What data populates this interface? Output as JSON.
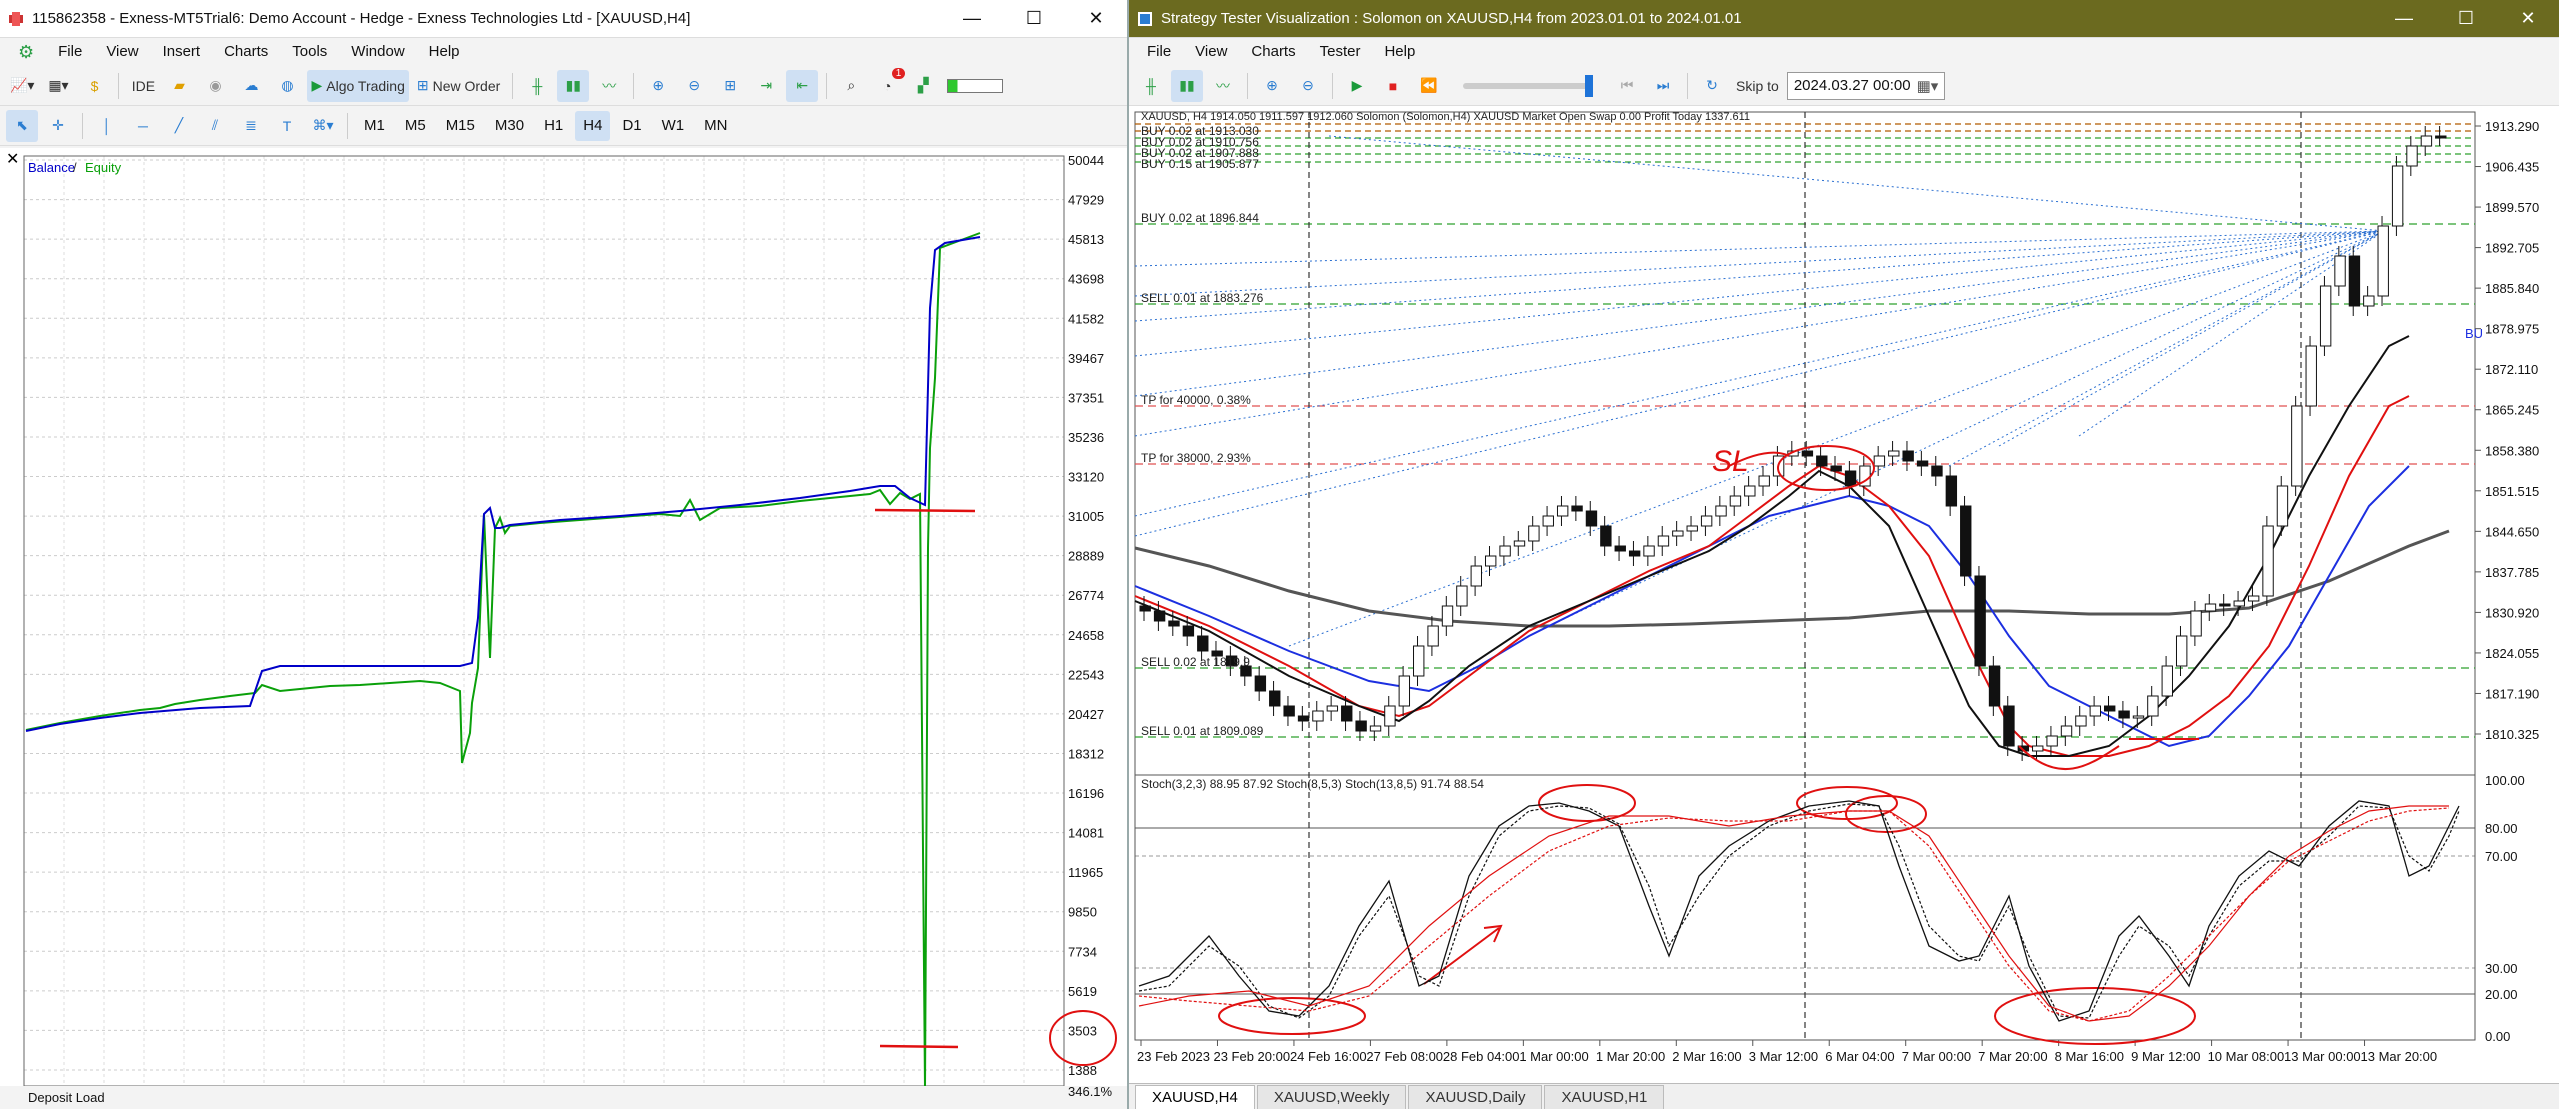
{
  "left": {
    "title": "115862358 - Exness-MT5Trial6: Demo Account - Hedge - Exness Technologies Ltd - [XAUUSD,H4]",
    "menu": [
      "File",
      "View",
      "Insert",
      "Charts",
      "Tools",
      "Window",
      "Help"
    ],
    "toolbar": {
      "ide": "IDE",
      "algo_trading": "Algo Trading",
      "new_order": "New Order",
      "badge": "1",
      "timeframes": [
        "M1",
        "M5",
        "M15",
        "M30",
        "H1",
        "H4",
        "D1",
        "W1",
        "MN"
      ],
      "active_timeframe": "H4"
    },
    "chart": {
      "legend_balance": "Balance",
      "legend_sep": " / ",
      "legend_equity": "Equity",
      "balance_color": "#0000c8",
      "equity_color": "#0aa00a",
      "y_ticks": [
        "50044",
        "47929",
        "45813",
        "43698",
        "41582",
        "39467",
        "37351",
        "35236",
        "33120",
        "31005",
        "28889",
        "26774",
        "24658",
        "22543",
        "20427",
        "18312",
        "16196",
        "14081",
        "11965",
        "9850",
        "7734",
        "5619",
        "3503",
        "1388"
      ],
      "footer_left": "Deposit Load",
      "footer_right": "346.1%"
    }
  },
  "right": {
    "title": "Strategy Tester Visualization : Solomon on XAUUSD,H4 from 2023.01.01 to 2024.01.01",
    "menu": [
      "File",
      "View",
      "Charts",
      "Tester",
      "Help"
    ],
    "skip_label": "Skip to",
    "skip_value": "2024.03.27 00:00",
    "chart": {
      "price_ticks": [
        "1913.290",
        "1906.435",
        "1899.570",
        "1892.705",
        "1885.840",
        "1878.975",
        "1872.110",
        "1865.245",
        "1858.380",
        "1851.515",
        "1844.650",
        "1837.785",
        "1830.920",
        "1824.055",
        "1817.190",
        "1810.325"
      ],
      "info_line": "XAUUSD, H4  1914.050 1911.597 1912.060  Solomon (Solomon,H4) XAUUSD  Market Open  Swap 0.00  Profit Today 1337.611",
      "order_labels": [
        "BUY 0.02 at 1913.030",
        "BUY 0.02 at 1910.756",
        "BUY 0.02 at 1907.888",
        "BUY 0.15 at 1905.877",
        "BUY 0.02 at 1896.844",
        "SELL 0.01 at 1883.276",
        "TP for 40000, 0.38%",
        "TP for 38000, 2.93%",
        "SELL 0.02 at 1819.9",
        "SELL 0.01 at 1809.089"
      ],
      "side_label": "BU",
      "annotation_sl": "SL",
      "stoch_label": "Stoch(3,2,3) 88.95 87.92 Stoch(8,5,3) Stoch(13,8,5) 91.74 88.54",
      "stoch_ticks": [
        "100.00",
        "80.00",
        "70.00",
        "30.00",
        "20.00",
        "0.00"
      ],
      "x_ticks": [
        "23 Feb 2023",
        "23 Feb 20:00",
        "24 Feb 16:00",
        "27 Feb 08:00",
        "28 Feb 04:00",
        "1 Mar 00:00",
        "1 Mar 20:00",
        "2 Mar 16:00",
        "3 Mar 12:00",
        "6 Mar 04:00",
        "7 Mar 00:00",
        "7 Mar 20:00",
        "8 Mar 16:00",
        "9 Mar 12:00",
        "10 Mar 08:00",
        "13 Mar 00:00",
        "13 Mar 20:00"
      ]
    },
    "tabs": [
      "XAUUSD,H4",
      "XAUUSD,Weekly",
      "XAUUSD,Daily",
      "XAUUSD,H1"
    ],
    "active_tab": "XAUUSD,H4"
  }
}
